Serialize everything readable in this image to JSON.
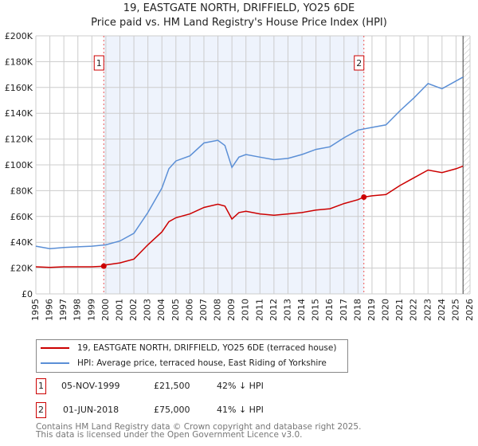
{
  "chart_data": {
    "type": "line",
    "title": "19, EASTGATE NORTH, DRIFFIELD, YO25 6DE",
    "subtitle": "Price paid vs. HM Land Registry's House Price Index (HPI)",
    "xlim": [
      1995,
      2026
    ],
    "ylim": [
      0,
      200000
    ],
    "y_ticks": [
      0,
      20000,
      40000,
      60000,
      80000,
      100000,
      120000,
      140000,
      160000,
      180000,
      200000
    ],
    "y_tick_labels": [
      "£0",
      "£20K",
      "£40K",
      "£60K",
      "£80K",
      "£100K",
      "£120K",
      "£140K",
      "£160K",
      "£180K",
      "£200K"
    ],
    "x_ticks": [
      "1995",
      "1996",
      "1997",
      "1998",
      "1999",
      "2000",
      "2001",
      "2002",
      "2003",
      "2004",
      "2005",
      "2006",
      "2007",
      "2008",
      "2009",
      "2010",
      "2011",
      "2012",
      "2013",
      "2014",
      "2015",
      "2016",
      "2017",
      "2018",
      "2019",
      "2020",
      "2021",
      "2022",
      "2023",
      "2024",
      "2025",
      "2026"
    ],
    "grid": true,
    "series": [
      {
        "name": "19, EASTGATE NORTH, DRIFFIELD, YO25 6DE (terraced house)",
        "color": "#cc0000",
        "x": [
          1995,
          1996,
          1997,
          1998,
          1999,
          1999.85,
          2000,
          2001,
          2002,
          2003,
          2004,
          2004.5,
          2005,
          2006,
          2007,
          2008,
          2008.5,
          2009,
          2009.5,
          2010,
          2011,
          2012,
          2013,
          2014,
          2015,
          2016,
          2017,
          2018,
          2018.42,
          2019,
          2020,
          2021,
          2022,
          2023,
          2024,
          2025,
          2025.5
        ],
        "y": [
          21000,
          20500,
          21000,
          21000,
          21000,
          21500,
          22500,
          24000,
          27000,
          38000,
          48000,
          56000,
          59000,
          62000,
          67000,
          69500,
          68000,
          58000,
          63000,
          64000,
          62000,
          61000,
          62000,
          63000,
          65000,
          66000,
          70000,
          73000,
          75000,
          76000,
          77000,
          84000,
          90000,
          96000,
          94000,
          97000,
          99000
        ]
      },
      {
        "name": "HPI: Average price, terraced house, East Riding of Yorkshire",
        "color": "#5b8fd6",
        "x": [
          1995,
          1996,
          1997,
          1998,
          1999,
          2000,
          2001,
          2002,
          2003,
          2004,
          2004.5,
          2005,
          2006,
          2007,
          2008,
          2008.5,
          2009,
          2009.5,
          2010,
          2011,
          2012,
          2013,
          2014,
          2015,
          2016,
          2017,
          2018,
          2019,
          2020,
          2021,
          2022,
          2023,
          2024,
          2025,
          2025.5
        ],
        "y": [
          37000,
          35000,
          36000,
          36500,
          37000,
          38000,
          41000,
          47000,
          63000,
          82000,
          97000,
          103000,
          107000,
          117000,
          119000,
          115000,
          98000,
          106000,
          108000,
          106000,
          104000,
          105000,
          108000,
          112000,
          114000,
          121000,
          127000,
          129000,
          131000,
          142000,
          152000,
          163000,
          159000,
          165000,
          168000
        ]
      }
    ],
    "annotations": [
      {
        "label": "1",
        "x": 1999.85,
        "y": 21500
      },
      {
        "label": "2",
        "x": 2018.42,
        "y": 75000
      }
    ],
    "shaded_range": [
      1999.85,
      2018.42
    ],
    "hatched_from": 2025.5
  },
  "legend": {
    "items": [
      {
        "label": "19, EASTGATE NORTH, DRIFFIELD, YO25 6DE (terraced house)",
        "color": "#cc0000"
      },
      {
        "label": "HPI: Average price, terraced house, East Riding of Yorkshire",
        "color": "#5b8fd6"
      }
    ]
  },
  "transactions": [
    {
      "num": "1",
      "date": "05-NOV-1999",
      "price": "£21,500",
      "hpi": "42% ↓ HPI"
    },
    {
      "num": "2",
      "date": "01-JUN-2018",
      "price": "£75,000",
      "hpi": "41% ↓ HPI"
    }
  ],
  "footer": {
    "line1": "Contains HM Land Registry data © Crown copyright and database right 2025.",
    "line2": "This data is licensed under the Open Government Licence v3.0."
  }
}
